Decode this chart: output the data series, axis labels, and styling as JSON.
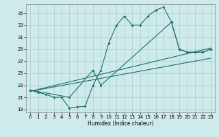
{
  "title": "",
  "xlabel": "Humidex (Indice chaleur)",
  "background_color": "#ceeaea",
  "grid_color": "#aacece",
  "line_color": "#1e6e6e",
  "xlim": [
    -0.5,
    23.5
  ],
  "ylim": [
    18.5,
    36.5
  ],
  "yticks": [
    19,
    21,
    23,
    25,
    27,
    29,
    31,
    33,
    35
  ],
  "xticks": [
    0,
    1,
    2,
    3,
    4,
    5,
    6,
    7,
    8,
    9,
    10,
    11,
    12,
    13,
    14,
    15,
    16,
    17,
    18,
    19,
    20,
    21,
    22,
    23
  ],
  "line1_x": [
    0,
    1,
    2,
    3,
    4,
    5,
    6,
    7,
    8,
    9,
    10,
    11,
    12,
    13,
    14,
    15,
    16,
    17,
    18,
    19,
    20,
    21,
    22,
    23
  ],
  "line1_y": [
    22.2,
    21.8,
    21.5,
    21.0,
    21.0,
    19.2,
    19.4,
    19.5,
    23.0,
    25.5,
    30.0,
    33.0,
    34.5,
    33.0,
    33.0,
    34.5,
    35.5,
    36.0,
    33.5,
    29.0,
    28.5,
    28.5,
    28.5,
    29.0
  ],
  "line2_x": [
    0,
    5,
    8,
    9,
    18,
    19,
    20,
    21,
    22,
    23
  ],
  "line2_y": [
    22.2,
    21.0,
    25.5,
    23.0,
    33.5,
    29.0,
    28.5,
    28.5,
    28.5,
    29.0
  ],
  "line3_x": [
    0,
    23
  ],
  "line3_y": [
    22.0,
    29.2
  ],
  "line4_x": [
    0,
    23
  ],
  "line4_y": [
    22.0,
    27.5
  ]
}
